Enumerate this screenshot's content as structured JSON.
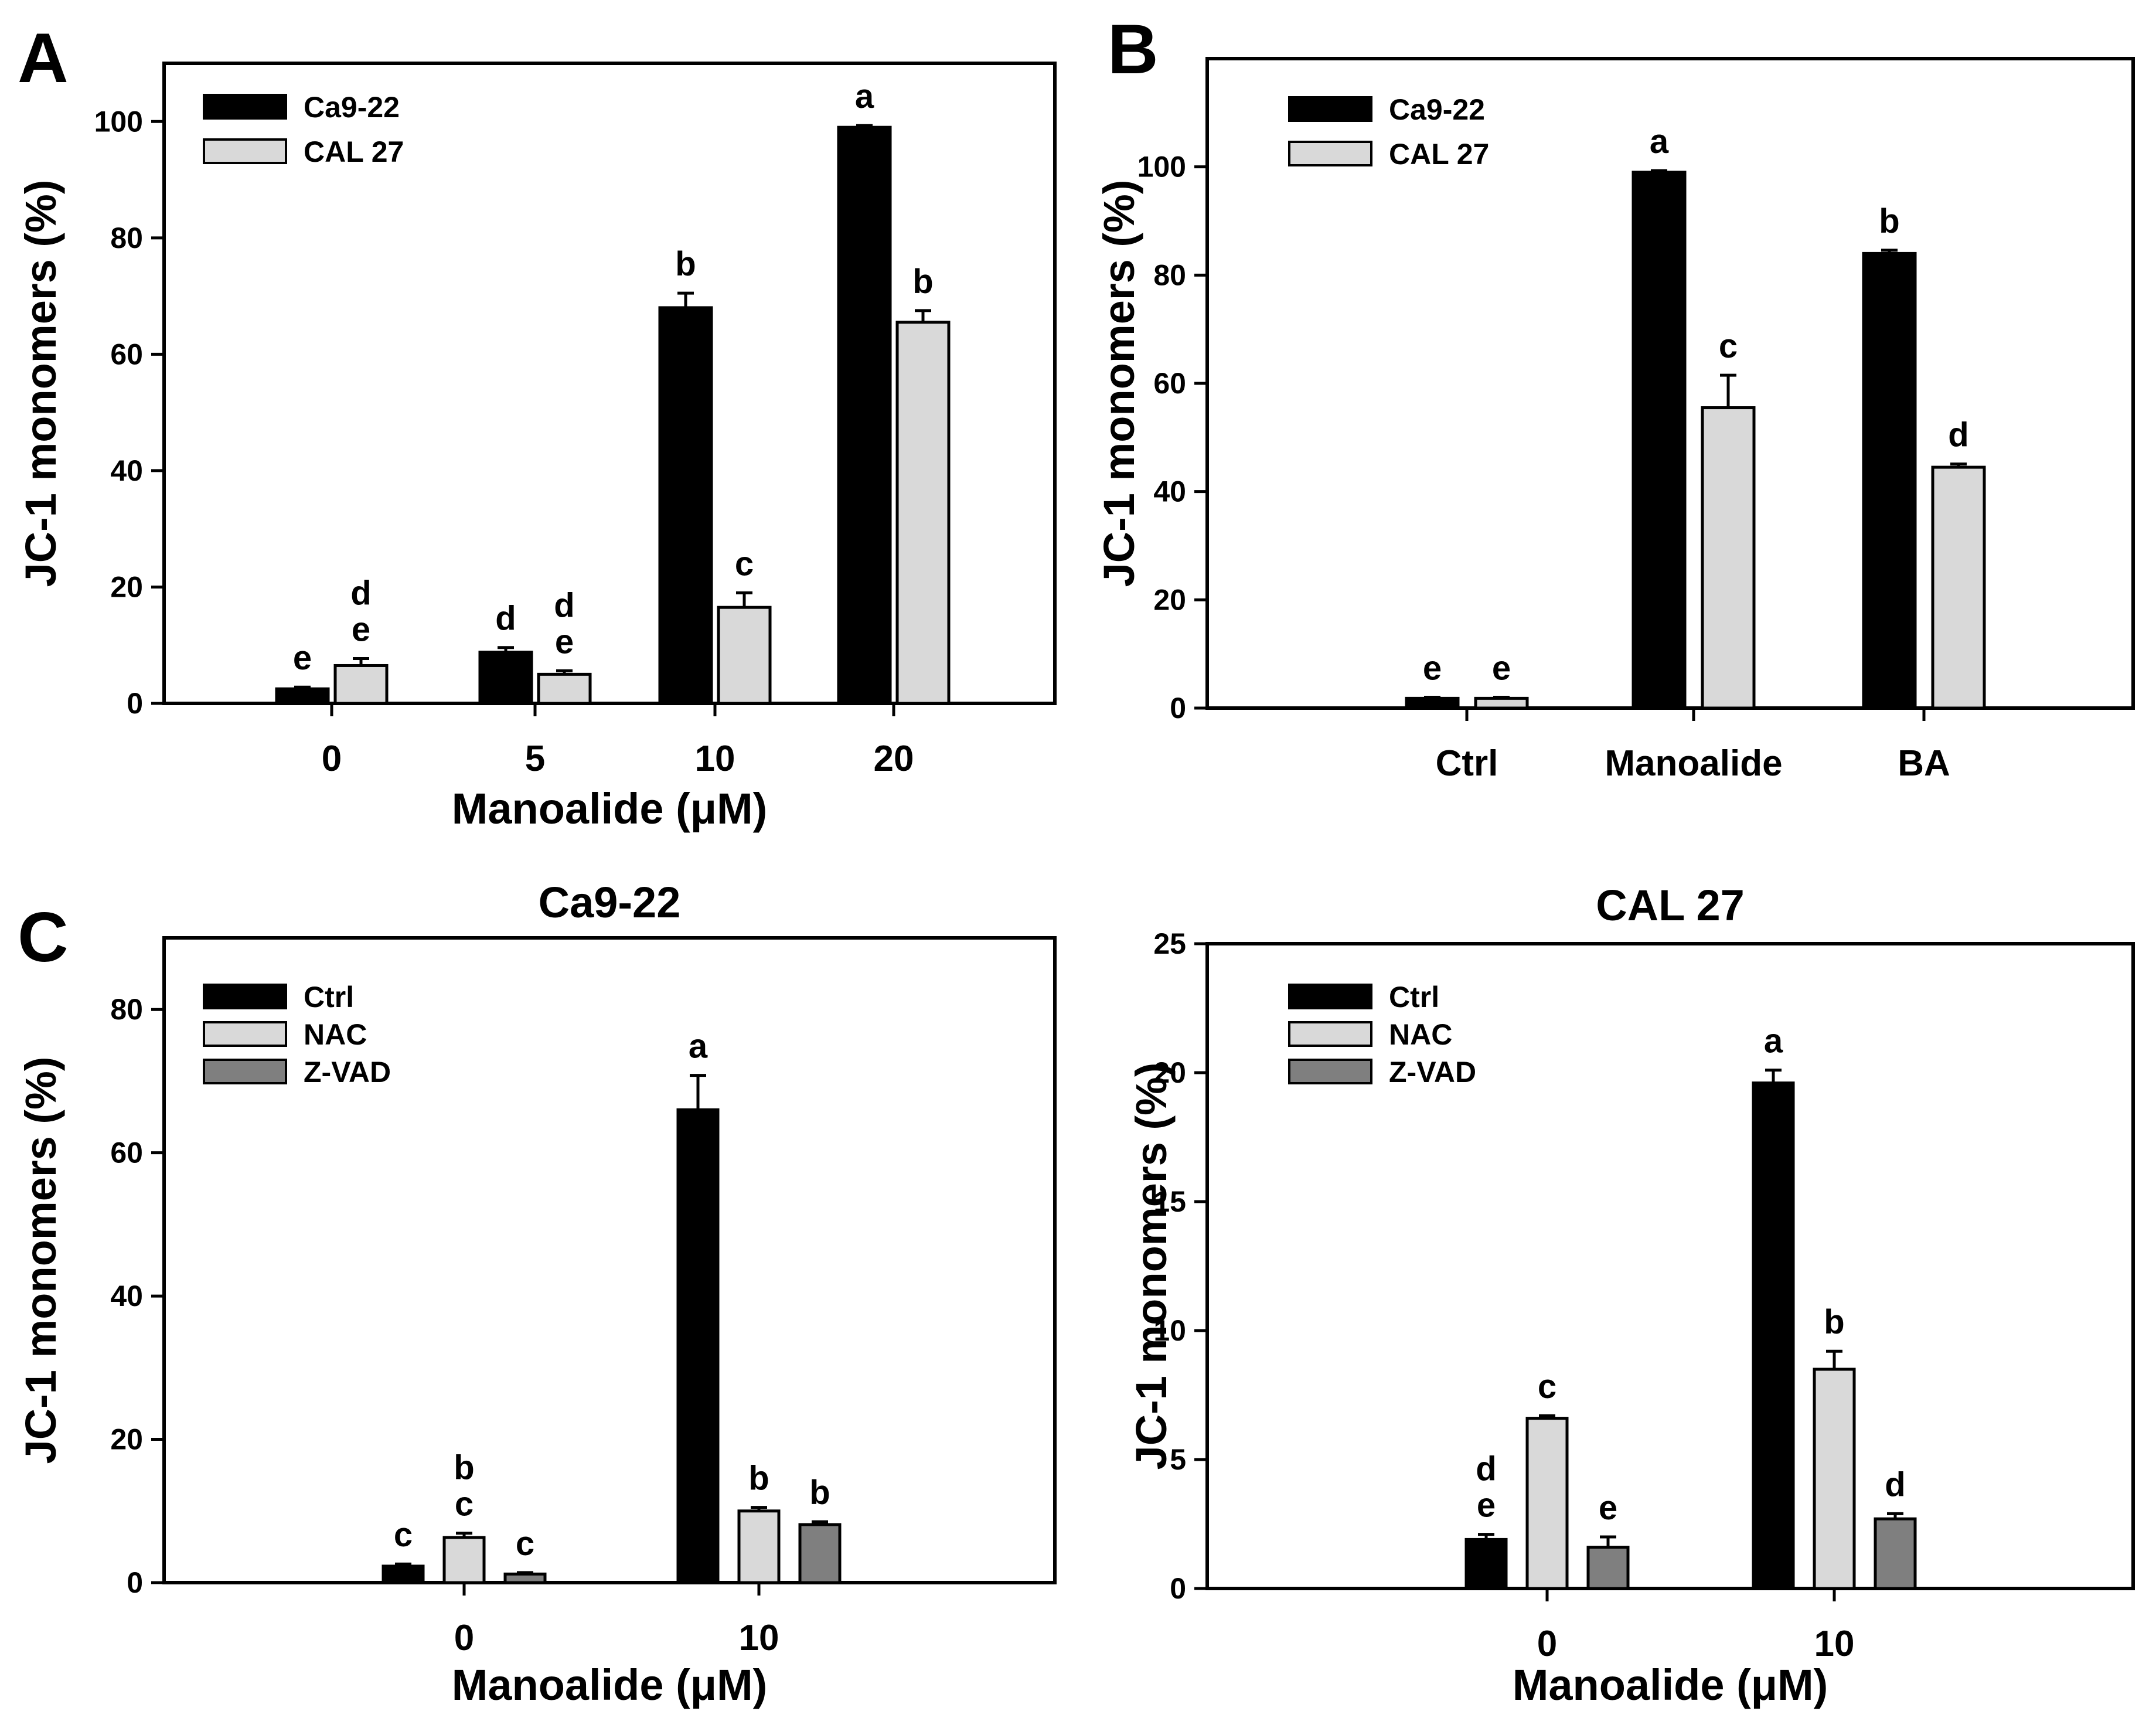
{
  "figure": {
    "panel_labels": [
      "A",
      "B",
      "C"
    ]
  },
  "colors": {
    "black_bar": "#000000",
    "light_gray_bar": "#d9d9d9",
    "dark_gray_bar": "#7f7f7f",
    "axis": "#000000"
  },
  "chart_data": [
    {
      "panel": "A",
      "type": "bar",
      "title": "",
      "xlabel": "Manoalide (μM)",
      "ylabel": "JC-1 monomers (%)",
      "ylim": [
        0,
        110
      ],
      "yticks": [
        0,
        20,
        40,
        60,
        80,
        100
      ],
      "categories": [
        "0",
        "5",
        "10",
        "20"
      ],
      "legend_position": "top-left",
      "series": [
        {
          "name": "Ca9-22",
          "color": "#000000",
          "values": [
            2.5,
            8.8,
            68,
            99
          ],
          "errors": [
            0.3,
            0.8,
            2.5,
            0.3
          ],
          "labels": [
            "e",
            "d",
            "b",
            "a"
          ]
        },
        {
          "name": "CAL 27",
          "color": "#d9d9d9",
          "values": [
            6.5,
            5.0,
            16.5,
            65.5
          ],
          "errors": [
            1.2,
            0.6,
            2.5,
            2.0
          ],
          "labels": [
            "d\ne",
            "d\ne",
            "c",
            "b"
          ]
        }
      ]
    },
    {
      "panel": "B",
      "type": "bar",
      "title": "",
      "xlabel": "",
      "ylabel": "JC-1 monomers (%)",
      "ylim": [
        0,
        120
      ],
      "yticks": [
        0,
        20,
        40,
        60,
        80,
        100
      ],
      "categories": [
        "Ctrl",
        "Manoalide",
        "BA"
      ],
      "legend_position": "top-left",
      "series": [
        {
          "name": "Ca9-22",
          "color": "#000000",
          "values": [
            1.8,
            99,
            84
          ],
          "errors": [
            0.2,
            0.3,
            0.6
          ],
          "labels": [
            "e",
            "a",
            "b"
          ]
        },
        {
          "name": "CAL 27",
          "color": "#d9d9d9",
          "values": [
            1.8,
            55.5,
            44.5
          ],
          "errors": [
            0.2,
            6.0,
            0.6
          ],
          "labels": [
            "e",
            "c",
            "d"
          ]
        }
      ]
    },
    {
      "panel": "C",
      "type": "bar",
      "title": "Ca9-22",
      "xlabel": "Manoalide (μM)",
      "ylabel": "JC-1 monomers (%)",
      "ylim": [
        0,
        90
      ],
      "yticks": [
        0,
        20,
        40,
        60,
        80
      ],
      "categories": [
        "0",
        "10"
      ],
      "legend_position": "top-left",
      "series": [
        {
          "name": "Ctrl",
          "color": "#000000",
          "values": [
            2.3,
            66
          ],
          "errors": [
            0.3,
            4.8
          ],
          "labels": [
            "c",
            "a"
          ]
        },
        {
          "name": "NAC",
          "color": "#d9d9d9",
          "values": [
            6.3,
            10
          ],
          "errors": [
            0.6,
            0.5
          ],
          "labels": [
            "b\nc",
            "b"
          ]
        },
        {
          "name": "Z-VAD",
          "color": "#7f7f7f",
          "values": [
            1.2,
            8.1
          ],
          "errors": [
            0.2,
            0.4
          ],
          "labels": [
            "c",
            "b"
          ]
        }
      ]
    },
    {
      "panel": "",
      "type": "bar",
      "title": "CAL 27",
      "xlabel": "Manoalide (μM)",
      "ylabel": "JC-1 monomers (%)",
      "ylim": [
        0,
        25
      ],
      "yticks": [
        0,
        5,
        10,
        15,
        20,
        25
      ],
      "categories": [
        "0",
        "10"
      ],
      "legend_position": "top-left",
      "series": [
        {
          "name": "Ctrl",
          "color": "#000000",
          "values": [
            1.9,
            19.6
          ],
          "errors": [
            0.2,
            0.5
          ],
          "labels": [
            "d\ne",
            "a"
          ]
        },
        {
          "name": "NAC",
          "color": "#d9d9d9",
          "values": [
            6.6,
            8.5
          ],
          "errors": [
            0.1,
            0.7
          ],
          "labels": [
            "c",
            "b"
          ]
        },
        {
          "name": "Z-VAD",
          "color": "#7f7f7f",
          "values": [
            1.6,
            2.7
          ],
          "errors": [
            0.4,
            0.2
          ],
          "labels": [
            "e",
            "d"
          ]
        }
      ]
    }
  ]
}
